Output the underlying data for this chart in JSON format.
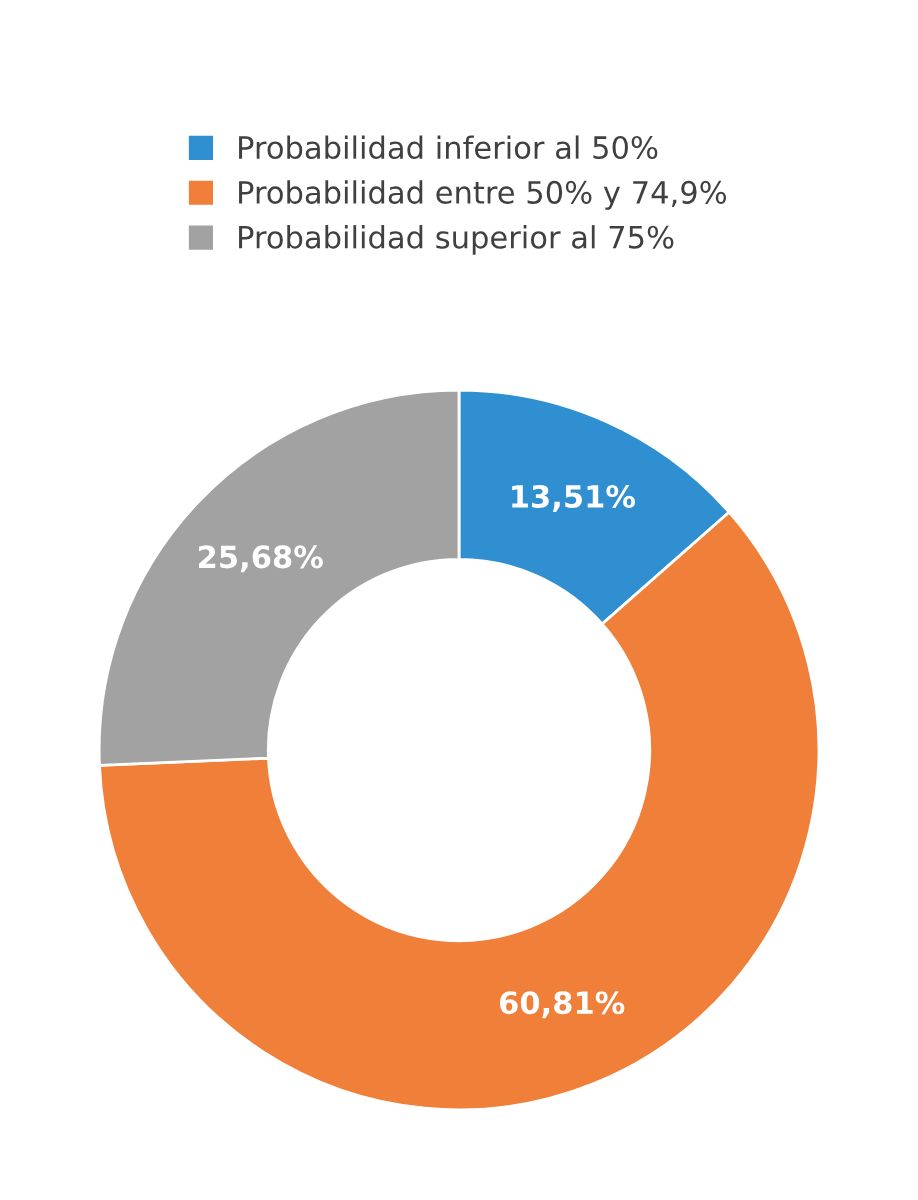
{
  "chart_data": {
    "type": "donut",
    "categories": [
      "Probabilidad inferior al 50%",
      "Probabilidad entre 50% y 74,9%",
      "Probabilidad superior al 75%"
    ],
    "values": [
      13.51,
      60.81,
      25.68
    ],
    "colors": [
      "#2f8fd0",
      "#f07f3a",
      "#a2a2a2"
    ],
    "value_labels": [
      "13,51%",
      "60,81%",
      "25,68%"
    ],
    "legend": "top"
  }
}
